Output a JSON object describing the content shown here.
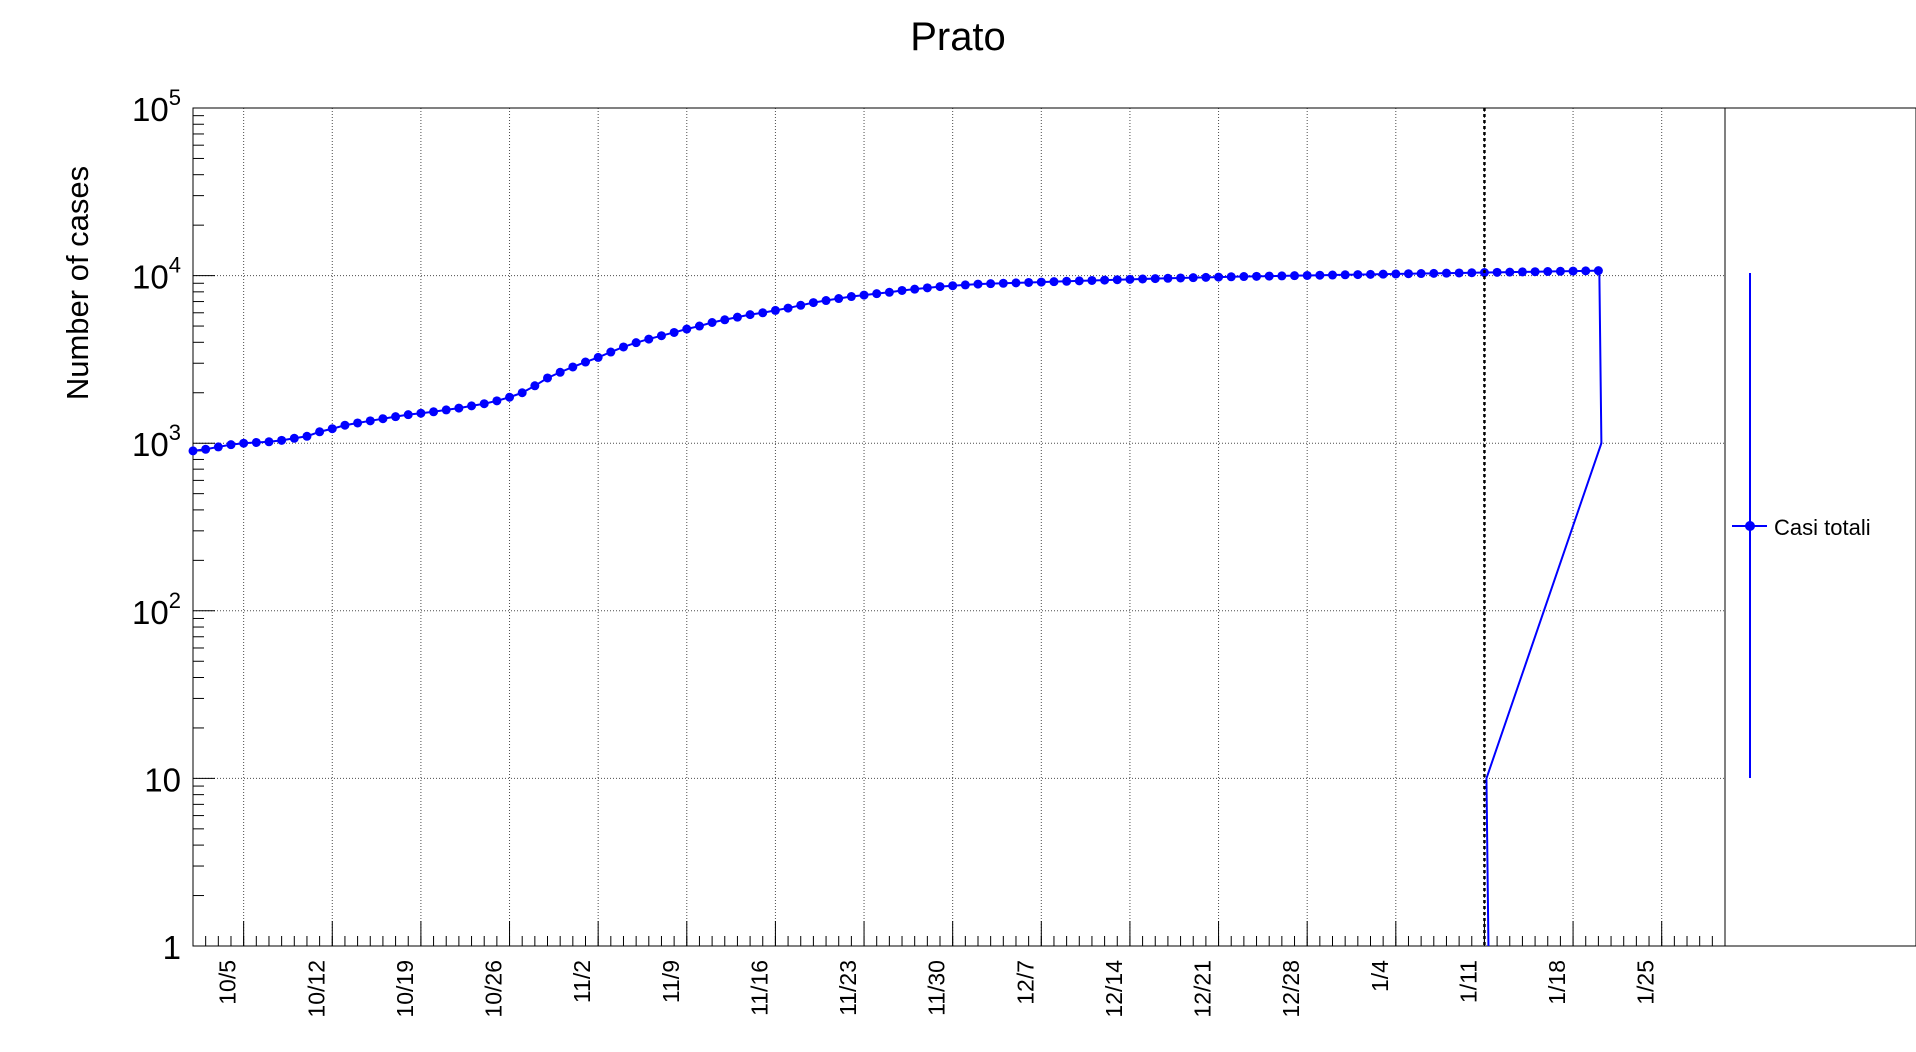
{
  "chart_data": {
    "type": "line",
    "title": "Prato",
    "ylabel": "Number of cases",
    "xlabel": "",
    "y_scale": "log",
    "ylim": [
      1,
      100000
    ],
    "xlim": [
      "2020-10-01",
      "2021-01-30"
    ],
    "grid": true,
    "legend_position": "right",
    "marker_line_date": "2021-01-11",
    "x_tick_labels": [
      "10/5",
      "10/12",
      "10/19",
      "10/26",
      "11/2",
      "11/9",
      "11/16",
      "11/23",
      "11/30",
      "12/7",
      "12/14",
      "12/21",
      "12/28",
      "1/4",
      "1/11",
      "1/18",
      "1/25"
    ],
    "x_tick_dates": [
      "2020-10-05",
      "2020-10-12",
      "2020-10-19",
      "2020-10-26",
      "2020-11-02",
      "2020-11-09",
      "2020-11-16",
      "2020-11-23",
      "2020-11-30",
      "2020-12-07",
      "2020-12-14",
      "2020-12-21",
      "2020-12-28",
      "2021-01-04",
      "2021-01-11",
      "2021-01-18",
      "2021-01-25"
    ],
    "y_tick_labels": [
      {
        "value": 1,
        "base": "1",
        "exp": ""
      },
      {
        "value": 10,
        "base": "10",
        "exp": ""
      },
      {
        "value": 100,
        "base": "10",
        "exp": "2"
      },
      {
        "value": 1000,
        "base": "10",
        "exp": "3"
      },
      {
        "value": 10000,
        "base": "10",
        "exp": "4"
      },
      {
        "value": 100000,
        "base": "10",
        "exp": "5"
      }
    ],
    "series": [
      {
        "name": "Casi totali",
        "color": "#0000ff",
        "start_date": "2020-10-01",
        "values": [
          900,
          920,
          950,
          980,
          1000,
          1010,
          1020,
          1040,
          1070,
          1100,
          1170,
          1220,
          1280,
          1320,
          1360,
          1400,
          1440,
          1480,
          1510,
          1540,
          1580,
          1620,
          1670,
          1720,
          1790,
          1880,
          2000,
          2200,
          2450,
          2650,
          2850,
          3050,
          3250,
          3500,
          3750,
          3980,
          4180,
          4380,
          4580,
          4800,
          5000,
          5250,
          5450,
          5650,
          5850,
          6000,
          6200,
          6400,
          6650,
          6900,
          7100,
          7300,
          7500,
          7650,
          7800,
          7950,
          8150,
          8300,
          8450,
          8600,
          8700,
          8800,
          8900,
          8950,
          9000,
          9050,
          9100,
          9150,
          9200,
          9250,
          9300,
          9350,
          9400,
          9450,
          9500,
          9550,
          9600,
          9640,
          9680,
          9720,
          9760,
          9800,
          9840,
          9870,
          9900,
          9930,
          9960,
          9990,
          10020,
          10050,
          10080,
          10110,
          10140,
          10170,
          10200,
          10230,
          10260,
          10290,
          10310,
          10340,
          10370,
          10400,
          10430,
          10460,
          10490,
          10520,
          10550,
          10580,
          10610,
          10640,
          10670,
          10700
        ]
      }
    ]
  }
}
